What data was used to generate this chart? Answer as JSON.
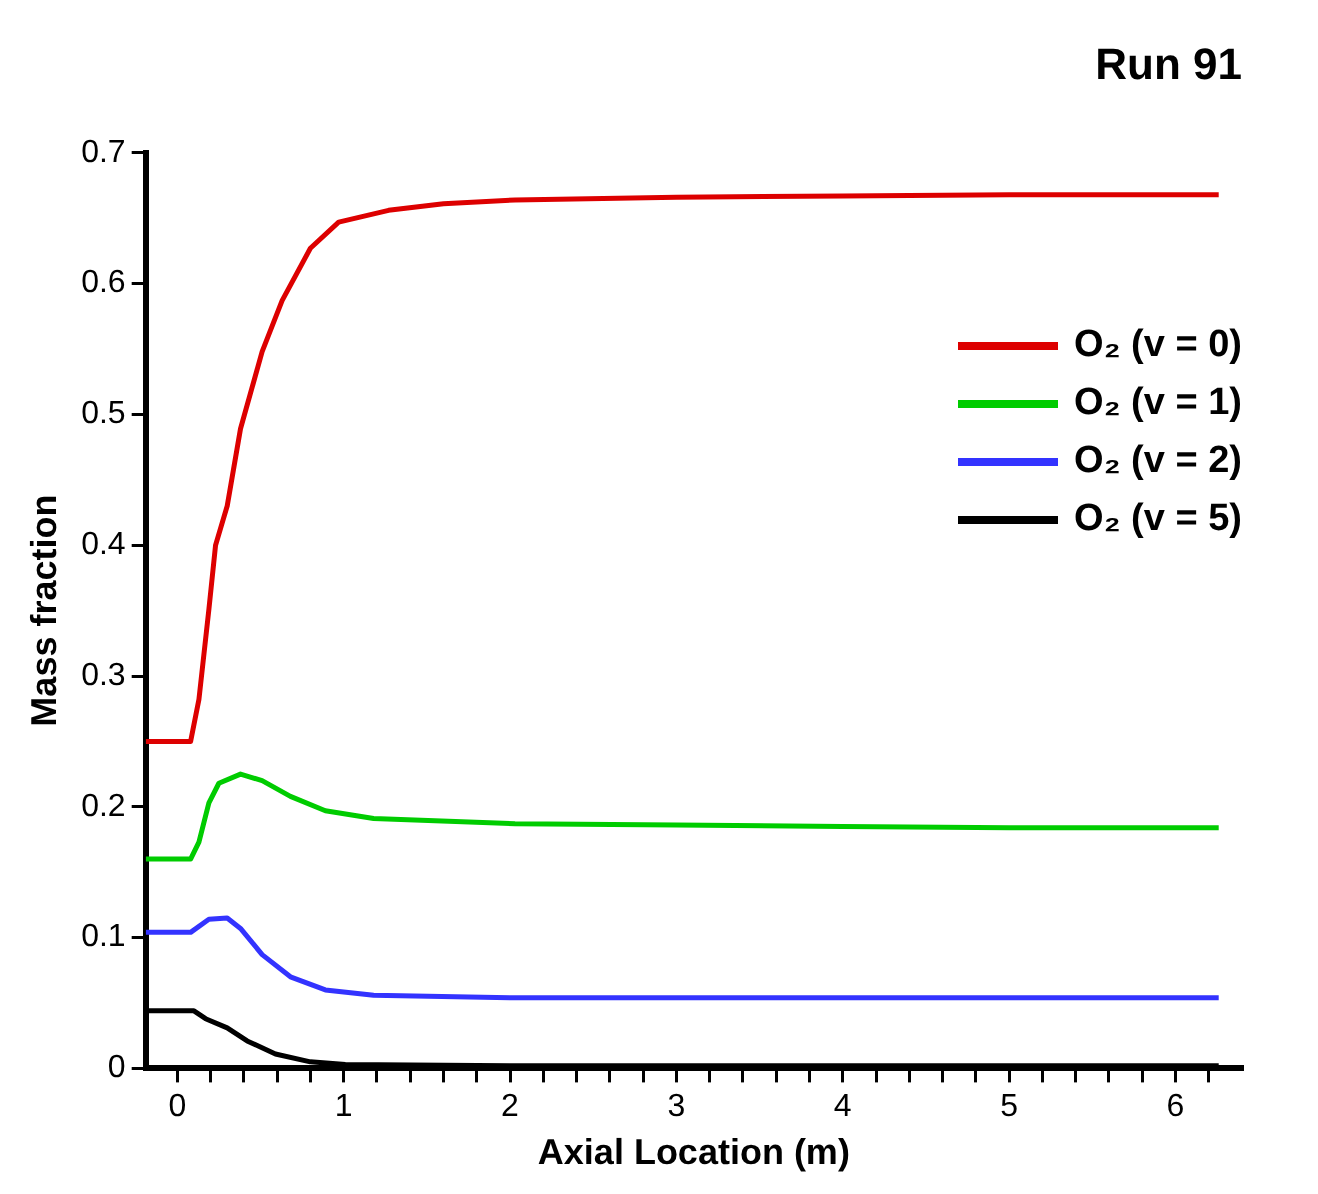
{
  "chart_data": {
    "type": "line",
    "title": "Run 91",
    "xlabel": "Axial Location (m)",
    "ylabel": "Mass fraction",
    "xlim": [
      -0.19,
      6.4
    ],
    "ylim": [
      0,
      0.7
    ],
    "xticks": [
      0,
      {
        "value": 0.2,
        "label": null
      },
      {
        "value": 0.4,
        "label": null
      },
      {
        "value": 0.6,
        "label": null
      },
      {
        "value": 0.8,
        "label": null
      },
      1,
      {
        "value": 1.2,
        "label": null
      },
      {
        "value": 1.4,
        "label": null
      },
      {
        "value": 1.6,
        "label": null
      },
      {
        "value": 1.8,
        "label": null
      },
      2,
      {
        "value": 2.2,
        "label": null
      },
      {
        "value": 2.4,
        "label": null
      },
      {
        "value": 2.6,
        "label": null
      },
      {
        "value": 2.8,
        "label": null
      },
      3,
      {
        "value": 3.2,
        "label": null
      },
      {
        "value": 3.4,
        "label": null
      },
      {
        "value": 3.6,
        "label": null
      },
      {
        "value": 3.8,
        "label": null
      },
      4,
      {
        "value": 4.2,
        "label": null
      },
      {
        "value": 4.4,
        "label": null
      },
      {
        "value": 4.6,
        "label": null
      },
      {
        "value": 4.8,
        "label": null
      },
      5,
      {
        "value": 5.2,
        "label": null
      },
      {
        "value": 5.4,
        "label": null
      },
      {
        "value": 5.6,
        "label": null
      },
      {
        "value": 5.8,
        "label": null
      },
      6,
      {
        "value": 6.2,
        "label": null
      }
    ],
    "yticks": [
      0,
      {
        "value": 0.1,
        "label": "0.1"
      },
      {
        "value": 0.2,
        "label": "0.2"
      },
      {
        "value": 0.3,
        "label": "0.3"
      },
      {
        "value": 0.4,
        "label": "0.4"
      },
      {
        "value": 0.5,
        "label": "0.5"
      },
      {
        "value": 0.6,
        "label": "0.6"
      },
      {
        "value": 0.7,
        "label": "0.7"
      }
    ],
    "grid": false,
    "legend": "top right",
    "marker": "none",
    "line_style": "solid",
    "series": [
      {
        "name": "O₂ (v = 0)",
        "color": "#dd0000",
        "x": [
          -0.19,
          0.08,
          0.13,
          0.19,
          0.23,
          0.3,
          0.38,
          0.51,
          0.63,
          0.8,
          0.97,
          1.27,
          1.6,
          2.03,
          3,
          4,
          5,
          6.26
        ],
        "values": [
          0.25,
          0.25,
          0.282,
          0.351,
          0.4,
          0.43,
          0.489,
          0.548,
          0.587,
          0.627,
          0.647,
          0.656,
          0.661,
          0.664,
          0.666,
          0.667,
          0.668,
          0.668
        ]
      },
      {
        "name": "O₂ (v = 1)",
        "color": "#00cc00",
        "x": [
          -0.19,
          0.08,
          0.13,
          0.19,
          0.25,
          0.38,
          0.51,
          0.68,
          0.89,
          1.18,
          2.03,
          3,
          4,
          5,
          6.26
        ],
        "values": [
          0.16,
          0.16,
          0.173,
          0.203,
          0.218,
          0.225,
          0.22,
          0.208,
          0.197,
          0.191,
          0.187,
          0.186,
          0.185,
          0.184,
          0.184
        ]
      },
      {
        "name": "O₂ (v = 2)",
        "color": "#3333ff",
        "x": [
          -0.19,
          0.08,
          0.19,
          0.3,
          0.38,
          0.51,
          0.68,
          0.89,
          1.18,
          2.03,
          3,
          4,
          5,
          6.26
        ],
        "values": [
          0.104,
          0.104,
          0.114,
          0.115,
          0.107,
          0.087,
          0.07,
          0.06,
          0.056,
          0.054,
          0.054,
          0.054,
          0.054,
          0.054
        ]
      },
      {
        "name": "O₂ (v = 5)",
        "color": "#000000",
        "x": [
          -0.19,
          0.1,
          0.17,
          0.3,
          0.42,
          0.59,
          0.8,
          1.01,
          2,
          3,
          4,
          5,
          6.26
        ],
        "values": [
          0.044,
          0.044,
          0.038,
          0.031,
          0.021,
          0.011,
          0.005,
          0.003,
          0.002,
          0.002,
          0.002,
          0.002,
          0.002
        ]
      }
    ]
  }
}
